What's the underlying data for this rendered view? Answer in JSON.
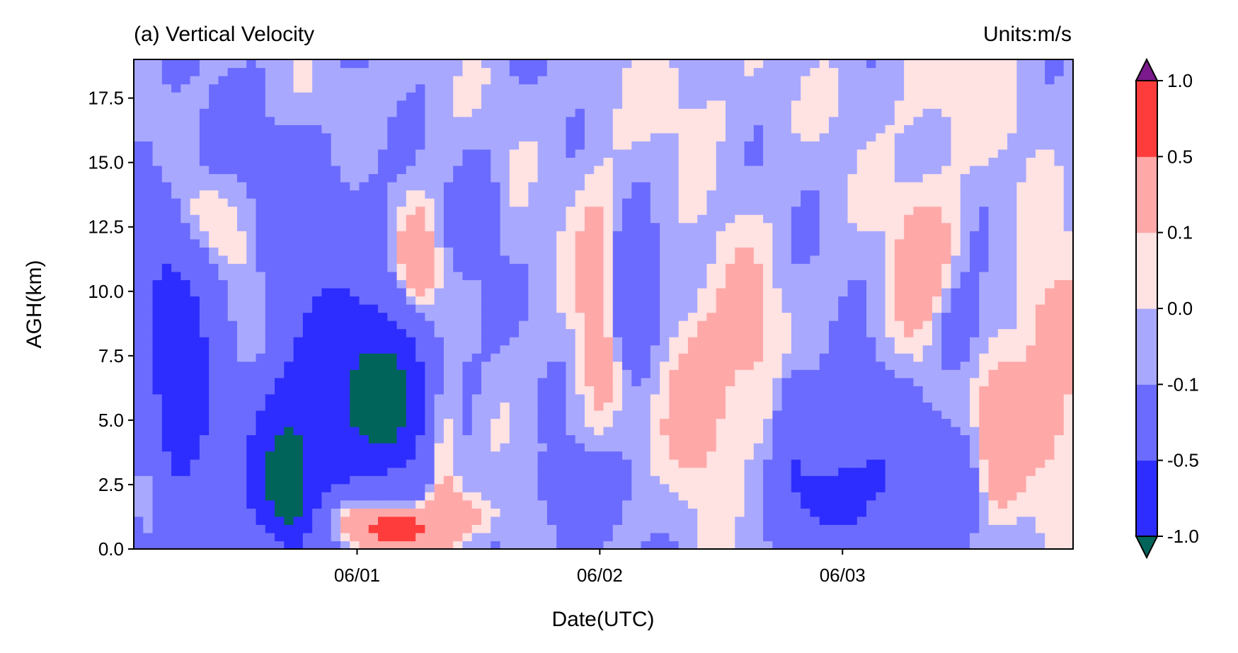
{
  "chart_data": {
    "type": "heatmap",
    "title": "(a) Vertical Velocity",
    "units_label": "Units:m/s",
    "xlabel": "Date(UTC)",
    "ylabel": "AGH(km)",
    "x_ticks": [
      "06/01",
      "06/02",
      "06/03"
    ],
    "x_range_days": [
      -0.92,
      2.95
    ],
    "y_ticks": [
      "0.0",
      "2.5",
      "5.0",
      "7.5",
      "10.0",
      "12.5",
      "15.0",
      "17.5"
    ],
    "ylim": [
      0,
      19
    ],
    "levels": [
      -1.0,
      -0.5,
      -0.1,
      0.0,
      0.1,
      0.5,
      1.0
    ],
    "colorbar_labels": [
      "-1.0",
      "-0.5",
      "-0.1",
      "0.0",
      "0.1",
      "0.5",
      "1.0"
    ],
    "colors": {
      "under": "#00645a",
      "bands": [
        "#2d2dff",
        "#6b6bff",
        "#a8a8ff",
        "#ffe2e2",
        "#ffa8a8",
        "#ff3c3c"
      ],
      "over": "#7a1a8c"
    },
    "features": [
      {
        "x": 0.1,
        "y": 5.7,
        "value": -1.1,
        "sx": 0.05,
        "sy": 0.9
      },
      {
        "x": 0.1,
        "y": 6.0,
        "value": -0.9,
        "sx": 0.17,
        "sy": 2.4
      },
      {
        "x": 0.25,
        "y": 11.0,
        "value": 0.4,
        "sx": 0.06,
        "sy": 1.6
      },
      {
        "x": 0.16,
        "y": 0.8,
        "value": 1.0,
        "sx": 0.09,
        "sy": 0.5
      },
      {
        "x": 0.35,
        "y": 4.0,
        "value": 0.4,
        "sx": 0.05,
        "sy": 2.5
      },
      {
        "x": -0.29,
        "y": 2.3,
        "value": -1.1,
        "sx": 0.04,
        "sy": 0.9
      },
      {
        "x": -0.29,
        "y": 3.2,
        "value": -0.7,
        "sx": 0.13,
        "sy": 2.2
      },
      {
        "x": -0.29,
        "y": 8.0,
        "value": -0.4,
        "sx": 0.25,
        "sy": 5.0
      },
      {
        "x": -0.45,
        "y": 8.5,
        "value": 0.4,
        "sx": 0.1,
        "sy": 3.2
      },
      {
        "x": -0.65,
        "y": 12.8,
        "value": 0.3,
        "sx": 0.09,
        "sy": 1.2
      },
      {
        "x": -0.75,
        "y": 6.5,
        "value": -0.6,
        "sx": 0.12,
        "sy": 4.5
      },
      {
        "x": -0.05,
        "y": 1.2,
        "value": 0.4,
        "sx": 0.08,
        "sy": 0.7
      },
      {
        "x": -0.85,
        "y": 2.0,
        "value": 0.3,
        "sx": 0.05,
        "sy": 1.6
      },
      {
        "x": 0.5,
        "y": 13.0,
        "value": -0.3,
        "sx": 0.05,
        "sy": 1.3
      },
      {
        "x": 1.0,
        "y": 9.5,
        "value": 0.3,
        "sx": 0.07,
        "sy": 3.4
      },
      {
        "x": 1.4,
        "y": 6.0,
        "value": 0.3,
        "sx": 0.09,
        "sy": 2.3
      },
      {
        "x": 0.4,
        "y": 1.2,
        "value": 0.3,
        "sx": 0.12,
        "sy": 0.6
      },
      {
        "x": 1.12,
        "y": 9.5,
        "value": -0.5,
        "sx": 0.06,
        "sy": 1.8
      },
      {
        "x": 1.6,
        "y": 8.0,
        "value": 0.2,
        "sx": 0.1,
        "sy": 2.8
      },
      {
        "x": 1.95,
        "y": 1.8,
        "value": -0.45,
        "sx": 0.12,
        "sy": 1.1
      },
      {
        "x": 2.05,
        "y": 3.8,
        "value": -0.3,
        "sx": 0.14,
        "sy": 2.0
      },
      {
        "x": 2.35,
        "y": 10.5,
        "value": 0.3,
        "sx": 0.1,
        "sy": 2.8
      },
      {
        "x": 2.65,
        "y": 4.5,
        "value": 0.4,
        "sx": 0.06,
        "sy": 1.9
      },
      {
        "x": 2.45,
        "y": 8.5,
        "value": -0.3,
        "sx": 0.08,
        "sy": 1.5
      },
      {
        "x": 2.3,
        "y": 2.5,
        "value": -0.35,
        "sx": 0.14,
        "sy": 1.6
      },
      {
        "x": 1.8,
        "y": 4.5,
        "value": -0.3,
        "sx": 0.05,
        "sy": 1.9
      },
      {
        "x": 2.85,
        "y": 7.0,
        "value": 0.3,
        "sx": 0.1,
        "sy": 3.2
      },
      {
        "x": 1.4,
        "y": 17.5,
        "value": 0.08,
        "sx": 0.2,
        "sy": 1.5
      },
      {
        "x": 2.45,
        "y": 17.5,
        "value": 0.08,
        "sx": 0.3,
        "sy": 1.6
      },
      {
        "x": -0.1,
        "y": 17.5,
        "value": 0.06,
        "sx": 0.18,
        "sy": 1.2
      },
      {
        "x": 0.9,
        "y": 2.0,
        "value": -0.35,
        "sx": 0.09,
        "sy": 1.2
      }
    ]
  }
}
